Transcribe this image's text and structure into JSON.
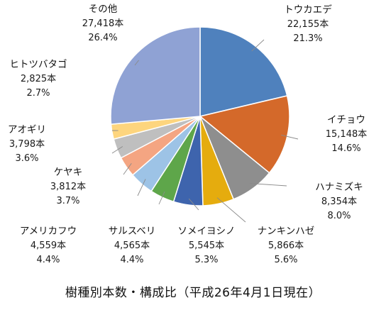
{
  "chart_data": {
    "type": "pie",
    "title": "樹種別本数・構成比（平成26年4月1日現在）",
    "start_angle_deg": 0,
    "direction": "clockwise",
    "slices": [
      {
        "name": "トウカエデ",
        "count": "22,155本",
        "pct": "21.3%",
        "value": 21.3,
        "color": "#4f81bd"
      },
      {
        "name": "イチョウ",
        "count": "15,148本",
        "pct": "14.6%",
        "value": 14.6,
        "color": "#d4692a"
      },
      {
        "name": "ハナミズキ",
        "count": "8,354本",
        "pct": "8.0%",
        "value": 8.0,
        "color": "#8e8e8e"
      },
      {
        "name": "ナンキンハゼ",
        "count": "5,866本",
        "pct": "5.6%",
        "value": 5.6,
        "color": "#e5ac0e"
      },
      {
        "name": "ソメイヨシノ",
        "count": "5,545本",
        "pct": "5.3%",
        "value": 5.3,
        "color": "#3e64ad"
      },
      {
        "name": "サルスベリ",
        "count": "4,565本",
        "pct": "4.4%",
        "value": 4.4,
        "color": "#5ea64a"
      },
      {
        "name": "アメリカフウ",
        "count": "4,559本",
        "pct": "4.4%",
        "value": 4.4,
        "color": "#9dc3e6"
      },
      {
        "name": "ケヤキ",
        "count": "3,812本",
        "pct": "3.7%",
        "value": 3.7,
        "color": "#f4a582"
      },
      {
        "name": "アオギリ",
        "count": "3,798本",
        "pct": "3.6%",
        "value": 3.6,
        "color": "#bfbfbf"
      },
      {
        "name": "ヒトツバタゴ",
        "count": "2,825本",
        "pct": "2.7%",
        "value": 2.7,
        "color": "#fdd57e"
      },
      {
        "name": "その他",
        "count": "27,418本",
        "pct": "26.4%",
        "value": 26.4,
        "color": "#8fa2d4"
      }
    ]
  }
}
